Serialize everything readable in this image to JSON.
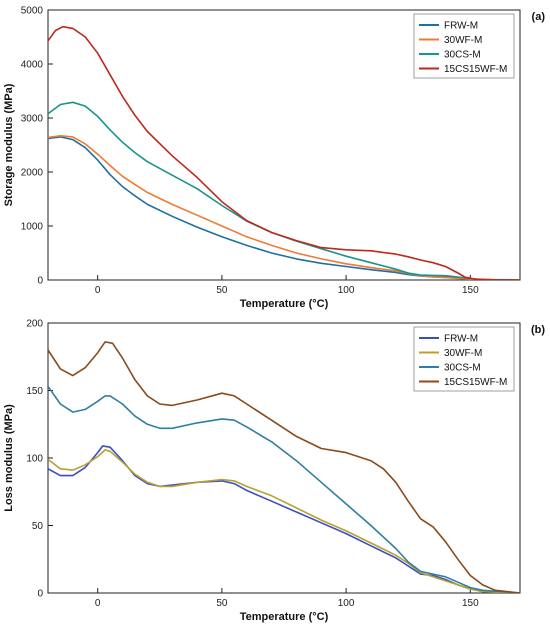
{
  "chart_data": [
    {
      "type": "line",
      "panel_label": "(a)",
      "xlabel": "Temperature (°C)",
      "ylabel": "Storage modulus (MPa)",
      "xlim": [
        -20,
        170
      ],
      "ylim": [
        0,
        5000
      ],
      "xticks": [
        0,
        50,
        100,
        150
      ],
      "yticks": [
        0,
        1000,
        2000,
        3000,
        4000,
        5000
      ],
      "grid": false,
      "legend_position": "top-right",
      "series": [
        {
          "name": "FRW-M",
          "color": "#1f6fa3",
          "points": [
            [
              -20,
              2620
            ],
            [
              -15,
              2650
            ],
            [
              -10,
              2600
            ],
            [
              -5,
              2450
            ],
            [
              0,
              2220
            ],
            [
              5,
              1950
            ],
            [
              10,
              1730
            ],
            [
              15,
              1560
            ],
            [
              20,
              1400
            ],
            [
              30,
              1180
            ],
            [
              40,
              980
            ],
            [
              50,
              800
            ],
            [
              60,
              640
            ],
            [
              70,
              500
            ],
            [
              80,
              390
            ],
            [
              90,
              310
            ],
            [
              100,
              250
            ],
            [
              110,
              190
            ],
            [
              120,
              140
            ],
            [
              125,
              100
            ],
            [
              130,
              75
            ],
            [
              135,
              60
            ],
            [
              140,
              55
            ],
            [
              145,
              45
            ],
            [
              150,
              20
            ],
            [
              155,
              8
            ],
            [
              160,
              3
            ],
            [
              170,
              0
            ]
          ]
        },
        {
          "name": "30WF-M",
          "color": "#f07a32",
          "points": [
            [
              -20,
              2640
            ],
            [
              -15,
              2670
            ],
            [
              -10,
              2650
            ],
            [
              -5,
              2520
            ],
            [
              0,
              2330
            ],
            [
              5,
              2120
            ],
            [
              10,
              1920
            ],
            [
              15,
              1770
            ],
            [
              20,
              1620
            ],
            [
              30,
              1400
            ],
            [
              40,
              1200
            ],
            [
              50,
              1000
            ],
            [
              60,
              800
            ],
            [
              70,
              640
            ],
            [
              80,
              500
            ],
            [
              90,
              390
            ],
            [
              100,
              300
            ],
            [
              110,
              230
            ],
            [
              120,
              170
            ],
            [
              125,
              120
            ],
            [
              130,
              80
            ],
            [
              135,
              55
            ],
            [
              140,
              45
            ],
            [
              145,
              30
            ],
            [
              150,
              15
            ],
            [
              155,
              6
            ],
            [
              160,
              2
            ],
            [
              170,
              0
            ]
          ]
        },
        {
          "name": "30CS-M",
          "color": "#19958c",
          "points": [
            [
              -20,
              3080
            ],
            [
              -15,
              3250
            ],
            [
              -10,
              3290
            ],
            [
              -5,
              3220
            ],
            [
              0,
              3030
            ],
            [
              5,
              2780
            ],
            [
              10,
              2550
            ],
            [
              15,
              2360
            ],
            [
              20,
              2190
            ],
            [
              30,
              1940
            ],
            [
              40,
              1690
            ],
            [
              50,
              1380
            ],
            [
              60,
              1090
            ],
            [
              70,
              880
            ],
            [
              80,
              720
            ],
            [
              90,
              580
            ],
            [
              100,
              440
            ],
            [
              110,
              320
            ],
            [
              120,
              200
            ],
            [
              125,
              130
            ],
            [
              130,
              90
            ],
            [
              135,
              85
            ],
            [
              140,
              80
            ],
            [
              145,
              55
            ],
            [
              150,
              25
            ],
            [
              155,
              10
            ],
            [
              160,
              3
            ],
            [
              170,
              0
            ]
          ]
        },
        {
          "name": "15CS15WF-M",
          "color": "#c0281c",
          "points": [
            [
              -20,
              4430
            ],
            [
              -17,
              4620
            ],
            [
              -14,
              4690
            ],
            [
              -10,
              4660
            ],
            [
              -5,
              4500
            ],
            [
              0,
              4200
            ],
            [
              5,
              3800
            ],
            [
              10,
              3400
            ],
            [
              15,
              3050
            ],
            [
              20,
              2750
            ],
            [
              30,
              2300
            ],
            [
              40,
              1900
            ],
            [
              50,
              1450
            ],
            [
              60,
              1100
            ],
            [
              70,
              880
            ],
            [
              80,
              730
            ],
            [
              90,
              600
            ],
            [
              100,
              560
            ],
            [
              110,
              540
            ],
            [
              120,
              480
            ],
            [
              125,
              430
            ],
            [
              130,
              370
            ],
            [
              135,
              320
            ],
            [
              140,
              250
            ],
            [
              145,
              130
            ],
            [
              148,
              50
            ],
            [
              152,
              15
            ],
            [
              160,
              3
            ],
            [
              170,
              0
            ]
          ]
        }
      ]
    },
    {
      "type": "line",
      "panel_label": "(b)",
      "xlabel": "Temperature (°C)",
      "ylabel": "Loss modulus (MPa)",
      "xlim": [
        -20,
        170
      ],
      "ylim": [
        0,
        200
      ],
      "xticks": [
        0,
        50,
        100,
        150
      ],
      "yticks": [
        0,
        50,
        100,
        150,
        200
      ],
      "grid": false,
      "legend_position": "top-right",
      "series": [
        {
          "name": "FRW-M",
          "color": "#3a4ec2",
          "points": [
            [
              -20,
              92
            ],
            [
              -15,
              87
            ],
            [
              -10,
              87
            ],
            [
              -5,
              93
            ],
            [
              0,
              104
            ],
            [
              2,
              109
            ],
            [
              5,
              108
            ],
            [
              10,
              98
            ],
            [
              15,
              87
            ],
            [
              20,
              81
            ],
            [
              25,
              79
            ],
            [
              30,
              80
            ],
            [
              40,
              82
            ],
            [
              50,
              83
            ],
            [
              55,
              81
            ],
            [
              60,
              76
            ],
            [
              70,
              68
            ],
            [
              80,
              60
            ],
            [
              90,
              52
            ],
            [
              100,
              44
            ],
            [
              110,
              35
            ],
            [
              120,
              26
            ],
            [
              125,
              20
            ],
            [
              130,
              14
            ],
            [
              135,
              13
            ],
            [
              140,
              10
            ],
            [
              145,
              6
            ],
            [
              150,
              3
            ],
            [
              155,
              1
            ],
            [
              170,
              0
            ]
          ]
        },
        {
          "name": "30WF-M",
          "color": "#b8a12e",
          "points": [
            [
              -20,
              99
            ],
            [
              -15,
              92
            ],
            [
              -10,
              91
            ],
            [
              -5,
              95
            ],
            [
              0,
              101
            ],
            [
              3,
              106
            ],
            [
              5,
              105
            ],
            [
              10,
              97
            ],
            [
              15,
              88
            ],
            [
              20,
              82
            ],
            [
              25,
              79
            ],
            [
              30,
              79
            ],
            [
              40,
              82
            ],
            [
              50,
              84
            ],
            [
              55,
              83
            ],
            [
              60,
              79
            ],
            [
              70,
              72
            ],
            [
              80,
              63
            ],
            [
              90,
              54
            ],
            [
              100,
              46
            ],
            [
              110,
              37
            ],
            [
              120,
              28
            ],
            [
              125,
              22
            ],
            [
              130,
              15
            ],
            [
              135,
              12
            ],
            [
              140,
              9
            ],
            [
              145,
              6
            ],
            [
              150,
              3
            ],
            [
              155,
              1
            ],
            [
              170,
              0
            ]
          ]
        },
        {
          "name": "30CS-M",
          "color": "#2f7fa0",
          "points": [
            [
              -20,
              153
            ],
            [
              -15,
              140
            ],
            [
              -10,
              134
            ],
            [
              -5,
              136
            ],
            [
              0,
              142
            ],
            [
              3,
              146
            ],
            [
              5,
              146
            ],
            [
              10,
              140
            ],
            [
              15,
              131
            ],
            [
              20,
              125
            ],
            [
              25,
              122
            ],
            [
              30,
              122
            ],
            [
              40,
              126
            ],
            [
              50,
              129
            ],
            [
              55,
              128
            ],
            [
              60,
              123
            ],
            [
              70,
              112
            ],
            [
              80,
              98
            ],
            [
              90,
              82
            ],
            [
              100,
              66
            ],
            [
              110,
              50
            ],
            [
              120,
              33
            ],
            [
              125,
              23
            ],
            [
              130,
              16
            ],
            [
              135,
              14
            ],
            [
              140,
              12
            ],
            [
              145,
              8
            ],
            [
              150,
              4
            ],
            [
              155,
              2
            ],
            [
              170,
              0
            ]
          ]
        },
        {
          "name": "15CS15WF-M",
          "color": "#8a4a1a",
          "points": [
            [
              -20,
              180
            ],
            [
              -15,
              166
            ],
            [
              -10,
              161
            ],
            [
              -5,
              167
            ],
            [
              0,
              178
            ],
            [
              3,
              186
            ],
            [
              6,
              185
            ],
            [
              10,
              174
            ],
            [
              15,
              158
            ],
            [
              20,
              146
            ],
            [
              25,
              140
            ],
            [
              30,
              139
            ],
            [
              40,
              143
            ],
            [
              50,
              148
            ],
            [
              55,
              146
            ],
            [
              60,
              140
            ],
            [
              70,
              128
            ],
            [
              80,
              116
            ],
            [
              90,
              107
            ],
            [
              100,
              104
            ],
            [
              110,
              98
            ],
            [
              115,
              92
            ],
            [
              120,
              82
            ],
            [
              125,
              68
            ],
            [
              130,
              55
            ],
            [
              135,
              49
            ],
            [
              140,
              38
            ],
            [
              145,
              25
            ],
            [
              150,
              13
            ],
            [
              155,
              6
            ],
            [
              160,
              2
            ],
            [
              170,
              0
            ]
          ]
        }
      ]
    }
  ]
}
